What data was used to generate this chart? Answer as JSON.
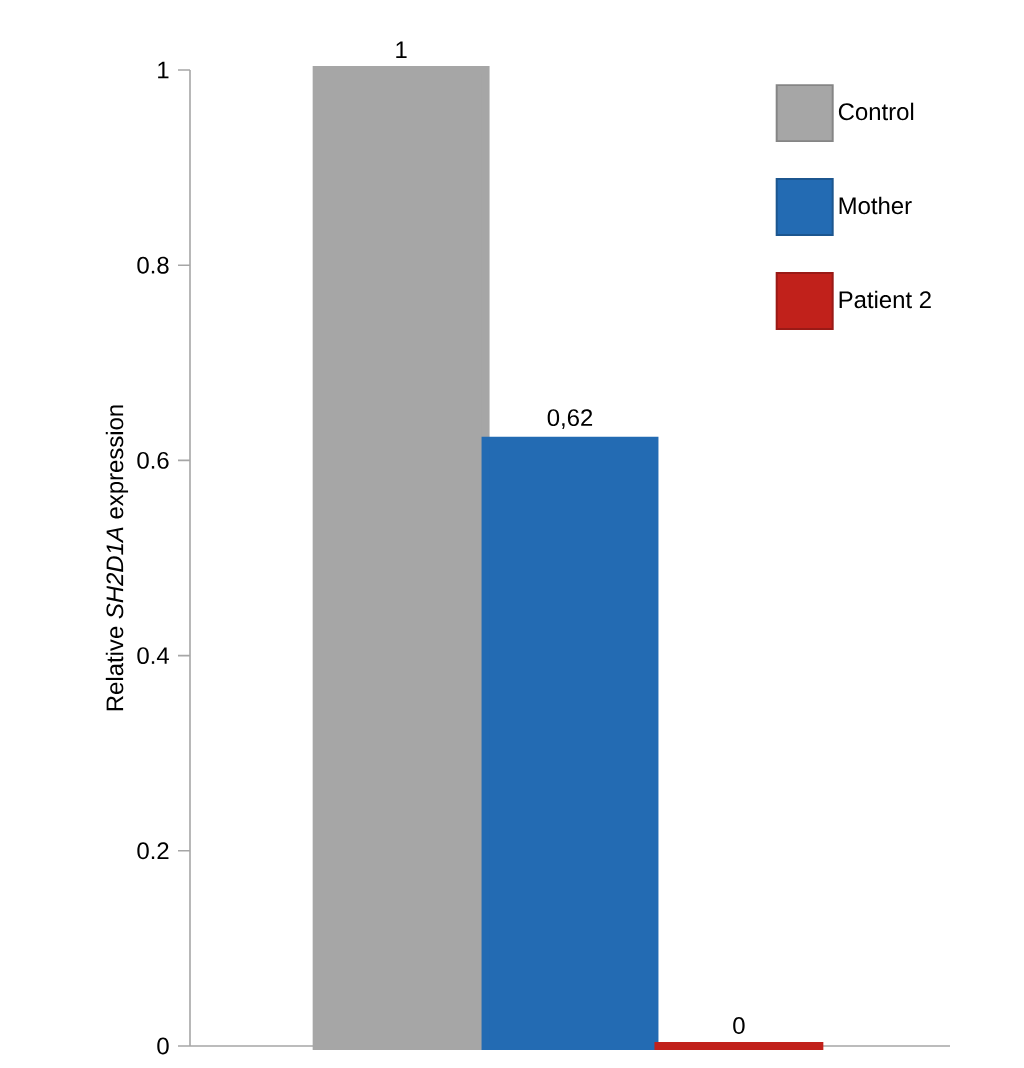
{
  "chart_data": {
    "type": "bar",
    "ylabel": "Relative *SH2D1A* expression",
    "categories": [
      null
    ],
    "series": [
      {
        "name": "Control",
        "color": "#a6a6a6",
        "values": [
          1
        ],
        "value_labels": [
          "1"
        ]
      },
      {
        "name": "Mother",
        "color": "#236bb3",
        "values": [
          0.62
        ],
        "value_labels": [
          "0,62"
        ]
      },
      {
        "name": "Patient 2",
        "color": "#c1211b",
        "values": [
          0
        ],
        "value_labels": [
          "0"
        ]
      }
    ],
    "ylim": [
      0,
      1
    ],
    "yticks": [
      0,
      0.2,
      0.4,
      0.6,
      0.8,
      1
    ],
    "legend": "top right"
  }
}
